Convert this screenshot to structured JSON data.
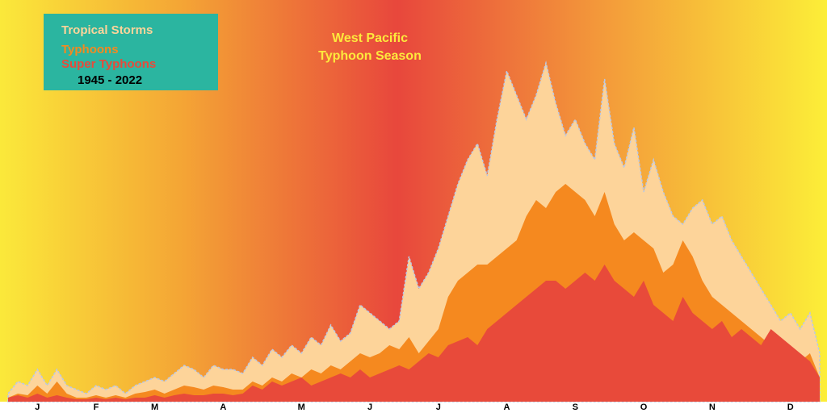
{
  "chart_data": {
    "type": "area",
    "title": [
      "West Pacific",
      "Typhoon Season"
    ],
    "subtitle": "1945 - 2022",
    "categories": [
      null,
      null,
      null,
      "J",
      null,
      null,
      null,
      null,
      null,
      "F",
      null,
      null,
      null,
      null,
      null,
      "M",
      null,
      null,
      null,
      null,
      null,
      null,
      "A",
      null,
      null,
      null,
      null,
      null,
      null,
      null,
      "M",
      null,
      null,
      null,
      null,
      null,
      null,
      "J",
      null,
      null,
      null,
      null,
      null,
      null,
      "J",
      null,
      null,
      null,
      null,
      null,
      null,
      "A",
      null,
      null,
      null,
      null,
      null,
      null,
      "S",
      null,
      null,
      null,
      null,
      null,
      null,
      "O",
      null,
      null,
      null,
      null,
      null,
      null,
      "N",
      null,
      null,
      null,
      null,
      null,
      null,
      null,
      "D",
      null,
      null,
      null
    ],
    "ylim": [
      0,
      460
    ],
    "series": [
      {
        "name": "Tropical Storms",
        "color": "#fdd49a",
        "values": [
          10,
          25,
          20,
          40,
          20,
          40,
          20,
          15,
          10,
          20,
          15,
          20,
          10,
          20,
          25,
          30,
          25,
          35,
          45,
          40,
          30,
          45,
          40,
          40,
          35,
          55,
          45,
          65,
          55,
          70,
          60,
          80,
          70,
          95,
          75,
          85,
          120,
          110,
          100,
          90,
          100,
          180,
          140,
          160,
          190,
          230,
          270,
          300,
          320,
          280,
          350,
          410,
          380,
          350,
          380,
          420,
          370,
          330,
          350,
          320,
          300,
          400,
          320,
          290,
          340,
          260,
          300,
          260,
          230,
          220,
          240,
          250,
          220,
          230,
          200,
          180,
          160,
          140,
          120,
          100,
          110,
          90,
          110,
          60
        ]
      },
      {
        "name": "Typhoons",
        "color": "#f5891f",
        "values": [
          5,
          10,
          8,
          20,
          10,
          25,
          10,
          5,
          5,
          8,
          5,
          8,
          5,
          10,
          12,
          15,
          10,
          15,
          20,
          18,
          15,
          20,
          18,
          15,
          15,
          25,
          20,
          30,
          25,
          35,
          30,
          40,
          35,
          45,
          40,
          50,
          60,
          55,
          60,
          70,
          65,
          80,
          60,
          75,
          90,
          130,
          150,
          160,
          170,
          170,
          180,
          190,
          200,
          230,
          250,
          240,
          260,
          270,
          260,
          250,
          230,
          260,
          220,
          200,
          210,
          200,
          190,
          160,
          170,
          200,
          180,
          150,
          130,
          120,
          110,
          100,
          90,
          80,
          70,
          60,
          70,
          50,
          60,
          30
        ]
      },
      {
        "name": "Super Typhoons",
        "color": "#e84a3a",
        "values": [
          5,
          8,
          5,
          10,
          5,
          8,
          5,
          3,
          3,
          5,
          3,
          5,
          3,
          5,
          5,
          8,
          5,
          8,
          10,
          8,
          8,
          10,
          10,
          8,
          10,
          20,
          15,
          25,
          20,
          25,
          30,
          20,
          25,
          30,
          35,
          30,
          40,
          30,
          35,
          40,
          45,
          40,
          50,
          60,
          55,
          70,
          75,
          80,
          70,
          90,
          100,
          110,
          120,
          130,
          140,
          150,
          150,
          140,
          150,
          160,
          150,
          170,
          150,
          140,
          130,
          150,
          120,
          110,
          100,
          130,
          110,
          100,
          90,
          100,
          80,
          90,
          80,
          70,
          90,
          80,
          70,
          60,
          50,
          30
        ]
      }
    ]
  }
}
